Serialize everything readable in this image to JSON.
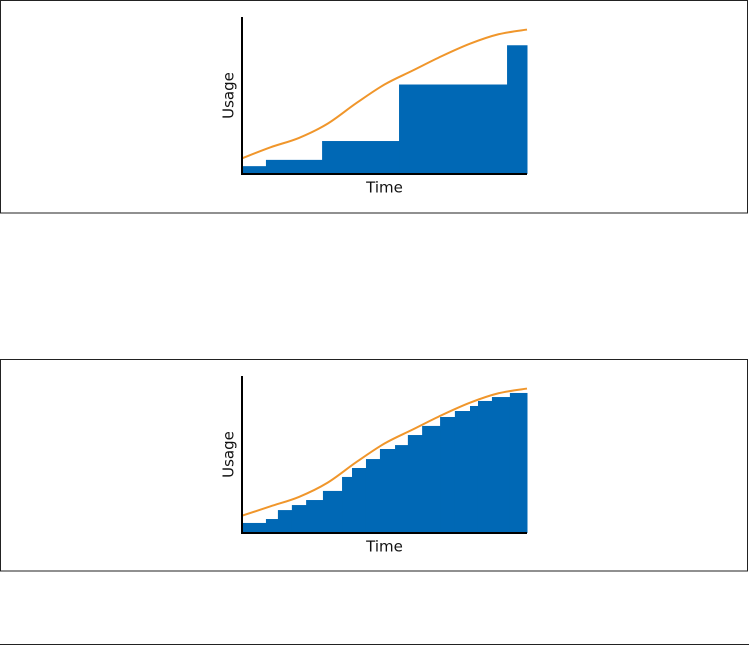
{
  "chart_data": [
    {
      "type": "histogram",
      "xlabel": "Time",
      "ylabel": "Usage",
      "xlim": [
        0,
        100
      ],
      "ylim": [
        0,
        100
      ],
      "grid": false,
      "bins": [
        0,
        8.4,
        28.1,
        55.1,
        93.0,
        100
      ],
      "values": [
        5,
        9,
        21,
        57,
        82
      ],
      "color": "#0068b5",
      "line": {
        "x": [
          0,
          10,
          20,
          30,
          40,
          50,
          60,
          70,
          80,
          90,
          100
        ],
        "values": [
          10,
          17,
          23,
          32,
          45,
          57,
          66,
          75,
          83,
          89,
          92
        ],
        "color": "#f0962b"
      }
    },
    {
      "type": "histogram",
      "xlabel": "Time",
      "ylabel": "Usage",
      "xlim": [
        0,
        100
      ],
      "ylim": [
        0,
        100
      ],
      "grid": false,
      "bins": [
        0,
        8.4,
        12.6,
        17.5,
        22.5,
        28.4,
        35.1,
        38.6,
        43.5,
        48.4,
        53.7,
        58.2,
        63.2,
        69.5,
        74.7,
        80,
        82.8,
        87.7,
        94,
        100
      ],
      "values": [
        6.4,
        8.9,
        14.6,
        17.8,
        21,
        26.8,
        35.7,
        41.4,
        47.1,
        53.5,
        56,
        62.4,
        68.2,
        73.9,
        77.7,
        80.9,
        84.1,
        86.6,
        89.2
      ],
      "color": "#0068b5",
      "line": {
        "x": [
          0,
          10,
          20,
          30,
          40,
          50,
          60,
          70,
          80,
          90,
          100
        ],
        "values": [
          11,
          17,
          23,
          32,
          45,
          57,
          66,
          75,
          83,
          89,
          92
        ],
        "color": "#f0962b"
      }
    }
  ]
}
